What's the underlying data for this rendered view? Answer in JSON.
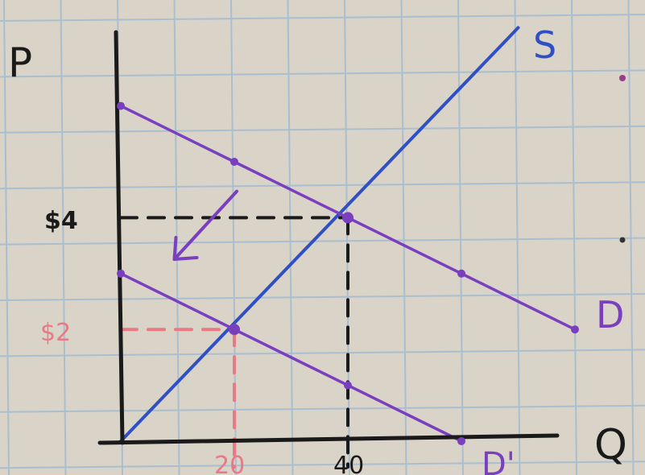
{
  "chart_data": {
    "type": "line",
    "title": "",
    "xlabel": "Q",
    "ylabel": "P",
    "grid": true,
    "xlim": [
      0,
      60
    ],
    "ylim": [
      0,
      8
    ],
    "series": [
      {
        "name": "S",
        "color": "#2f4fc4",
        "points": [
          [
            0,
            0
          ],
          [
            70,
            7.4
          ]
        ]
      },
      {
        "name": "D",
        "color": "#7a3fbf",
        "points": [
          [
            0,
            6
          ],
          [
            20,
            5
          ],
          [
            60,
            3
          ],
          [
            80,
            2
          ]
        ]
      },
      {
        "name": "D'",
        "color": "#7a3fbf",
        "points": [
          [
            0,
            3
          ],
          [
            20,
            2
          ],
          [
            40,
            1
          ],
          [
            60,
            0
          ]
        ]
      }
    ],
    "equilibria": [
      {
        "id": "original",
        "q": 40,
        "p": 4,
        "q_label": "40",
        "p_label": "$4",
        "color": "#1a1a1a"
      },
      {
        "id": "new",
        "q": 20,
        "p": 2,
        "q_label": "20",
        "p_label": "$2",
        "color": "#e87a86"
      }
    ],
    "annotations": {
      "shift_arrow": {
        "from": [
          21,
          4.4
        ],
        "to": [
          10,
          3.4
        ],
        "color": "#7a3fbf",
        "meaning": "demand shifts left"
      }
    }
  },
  "colors": {
    "paper": "#d9d3c8",
    "grid": "#a9bfd0",
    "axis": "#1a1a1a",
    "supply": "#2f4fc4",
    "demand": "#7a3fbf",
    "pink": "#e87a86"
  }
}
